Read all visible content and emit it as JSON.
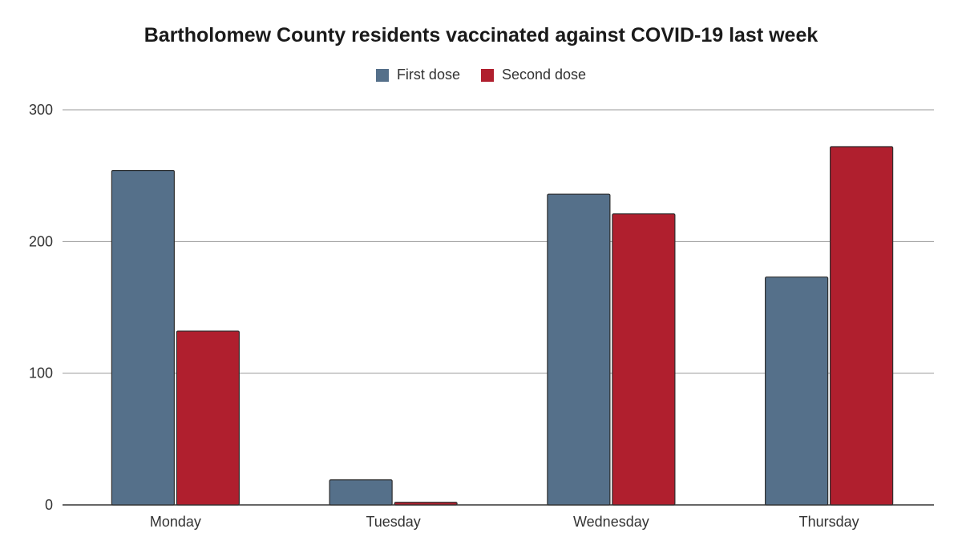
{
  "chart_data": {
    "type": "bar",
    "title": "Bartholomew County residents vaccinated against COVID-19 last week",
    "categories": [
      "Monday",
      "Tuesday",
      "Wednesday",
      "Thursday"
    ],
    "series": [
      {
        "name": "First dose",
        "color": "#55708a",
        "values": [
          254,
          19,
          236,
          173
        ]
      },
      {
        "name": "Second dose",
        "color": "#b01f2e",
        "values": [
          132,
          2,
          221,
          272
        ]
      }
    ],
    "xlabel": "",
    "ylabel": "",
    "ylim": [
      0,
      300
    ],
    "yticks": [
      "0",
      "100",
      "200",
      "300"
    ],
    "grid": true,
    "legend_position": "top-center"
  }
}
